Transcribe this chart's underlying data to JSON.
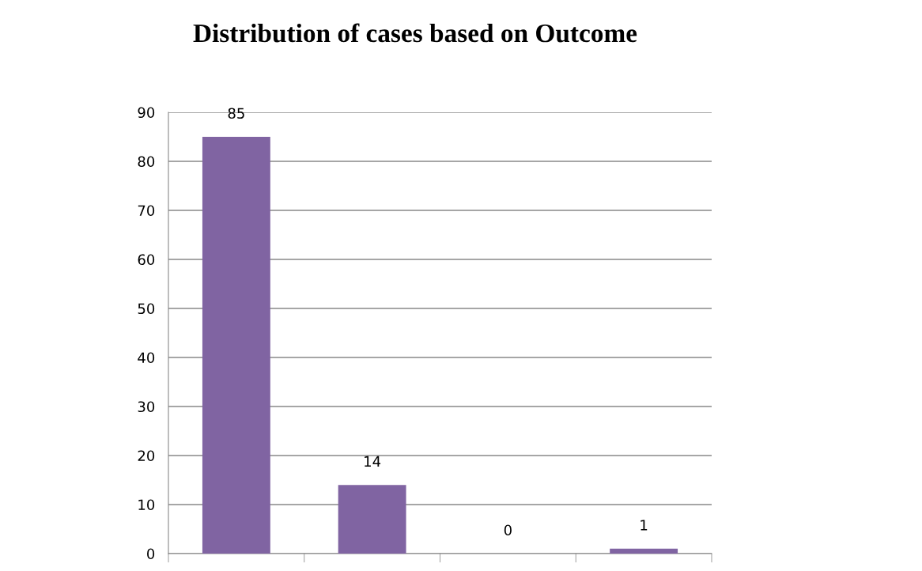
{
  "chart_data": {
    "type": "bar",
    "title": "Distribution of cases based on Outcome",
    "categories": [
      null,
      null,
      null,
      null
    ],
    "values": [
      85,
      14,
      0,
      1
    ],
    "color": "#8064a2",
    "ylim": [
      0,
      90
    ],
    "yticks": [
      0,
      10,
      20,
      30,
      40,
      50,
      60,
      70,
      80,
      90
    ],
    "grid": "y",
    "data_labels": true
  }
}
